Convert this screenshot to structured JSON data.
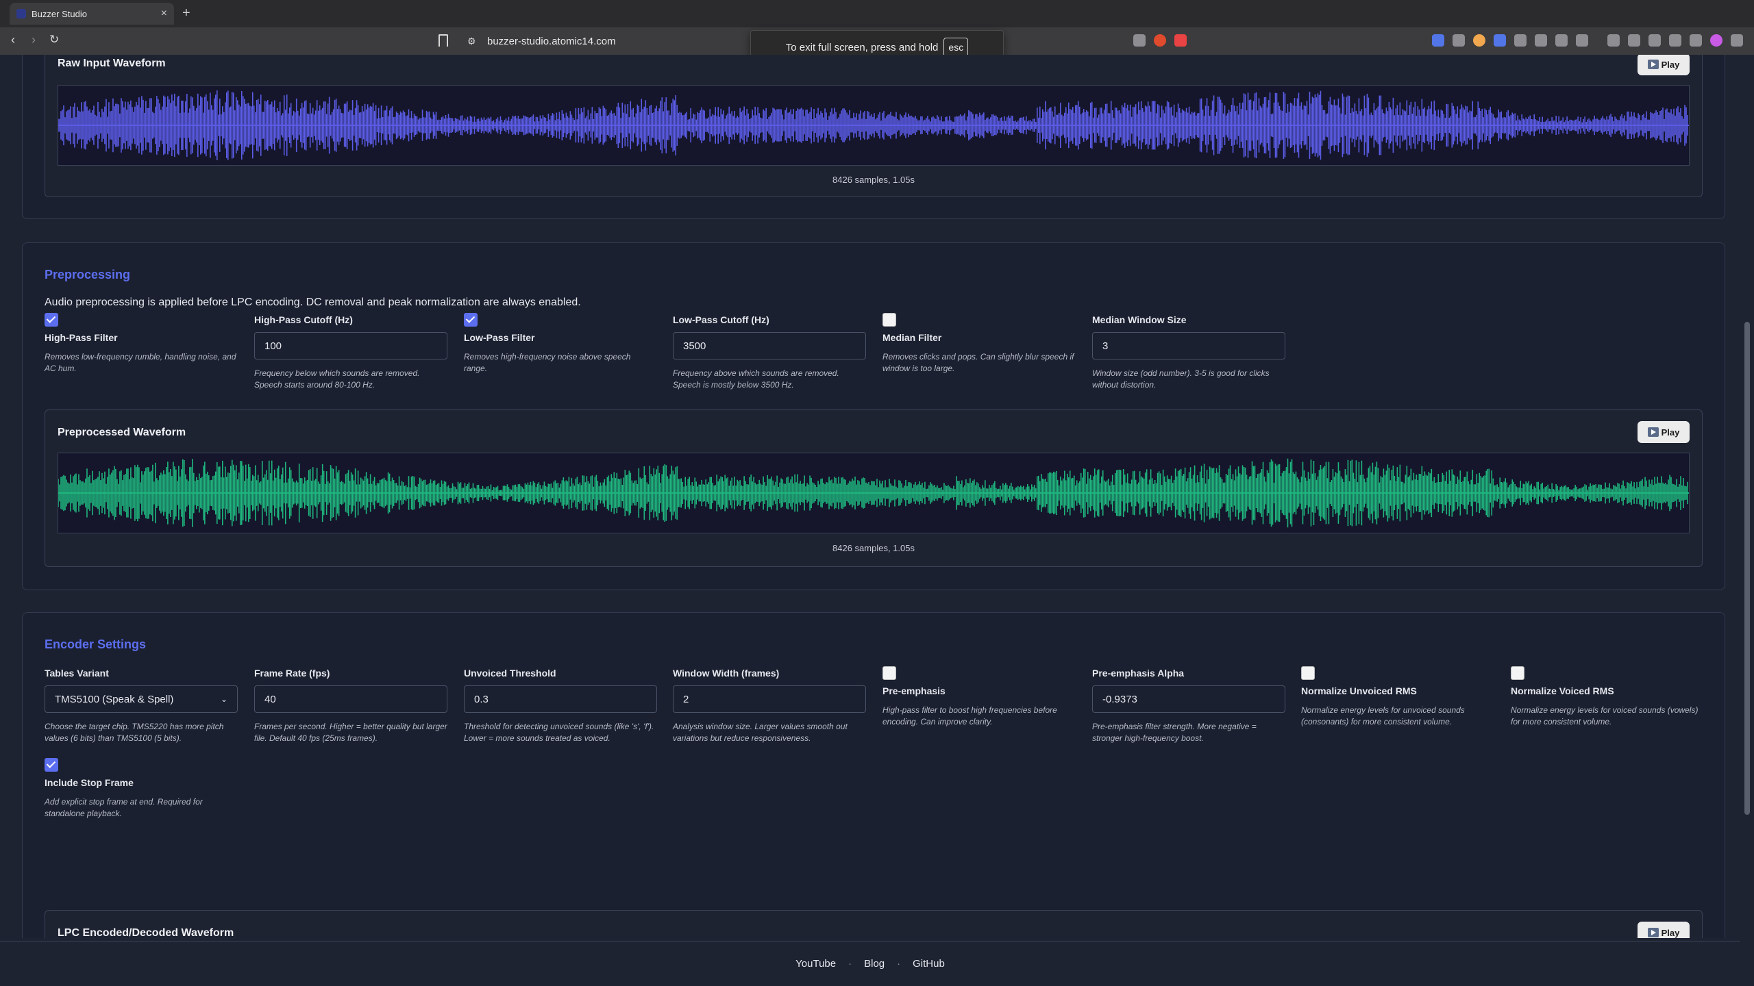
{
  "browser": {
    "tab_title": "Buzzer Studio",
    "tab_close": "×",
    "new_tab": "+",
    "url": "buzzer-studio.atomic14.com",
    "fullscreen_notice": "To exit full screen, press and hold",
    "fullscreen_key": "esc"
  },
  "raw": {
    "title": "Raw Input Waveform",
    "play_label": "Play",
    "samples": "8426 samples, 1.05s",
    "color": "#5b5ce6"
  },
  "preprocessing": {
    "heading": "Preprocessing",
    "description": "Audio preprocessing is applied before LPC encoding. DC removal and peak normalization are always enabled.",
    "high_pass": {
      "label": "High-Pass Filter",
      "checked": true,
      "help": "Removes low-frequency rumble, handling noise, and AC hum."
    },
    "high_pass_cutoff": {
      "label": "High-Pass Cutoff (Hz)",
      "value": "100",
      "help": "Frequency below which sounds are removed. Speech starts around 80-100 Hz."
    },
    "low_pass": {
      "label": "Low-Pass Filter",
      "checked": true,
      "help": "Removes high-frequency noise above speech range."
    },
    "low_pass_cutoff": {
      "label": "Low-Pass Cutoff (Hz)",
      "value": "3500",
      "help": "Frequency above which sounds are removed. Speech is mostly below 3500 Hz."
    },
    "median": {
      "label": "Median Filter",
      "checked": false,
      "help": "Removes clicks and pops. Can slightly blur speech if window is too large."
    },
    "median_window": {
      "label": "Median Window Size",
      "value": "3",
      "help": "Window size (odd number). 3-5 is good for clicks without distortion."
    },
    "waveform": {
      "title": "Preprocessed Waveform",
      "play_label": "Play",
      "samples": "8426 samples, 1.05s",
      "color": "#1fb57e"
    }
  },
  "encoder": {
    "heading": "Encoder Settings",
    "tables_variant": {
      "label": "Tables Variant",
      "value": "TMS5100 (Speak & Spell)",
      "help": "Choose the target chip. TMS5220 has more pitch values (6 bits) than TMS5100 (5 bits)."
    },
    "frame_rate": {
      "label": "Frame Rate (fps)",
      "value": "40",
      "help": "Frames per second. Higher = better quality but larger file. Default 40 fps (25ms frames)."
    },
    "unvoiced_threshold": {
      "label": "Unvoiced Threshold",
      "value": "0.3",
      "help": "Threshold for detecting unvoiced sounds (like 's', 'f'). Lower = more sounds treated as voiced."
    },
    "window_width": {
      "label": "Window Width (frames)",
      "value": "2",
      "help": "Analysis window size. Larger values smooth out variations but reduce responsiveness."
    },
    "pre_emphasis": {
      "label": "Pre-emphasis",
      "checked": false,
      "help": "High-pass filter to boost high frequencies before encoding. Can improve clarity."
    },
    "pre_emphasis_alpha": {
      "label": "Pre-emphasis Alpha",
      "value": "-0.9373",
      "help": "Pre-emphasis filter strength. More negative = stronger high-frequency boost."
    },
    "normalize_unvoiced": {
      "label": "Normalize Unvoiced RMS",
      "checked": false,
      "help": "Normalize energy levels for unvoiced sounds (consonants) for more consistent volume."
    },
    "normalize_voiced": {
      "label": "Normalize Voiced RMS",
      "checked": false,
      "help": "Normalize energy levels for voiced sounds (vowels) for more consistent volume."
    },
    "stop_frame": {
      "label": "Include Stop Frame",
      "checked": true,
      "help": "Add explicit stop frame at end. Required for standalone playback."
    },
    "waveform": {
      "title": "LPC Encoded/Decoded Waveform",
      "play_label": "Play",
      "color": "#f08a1c"
    }
  },
  "footer": {
    "links": [
      "YouTube",
      "Blog",
      "GitHub"
    ],
    "separator": "·"
  }
}
